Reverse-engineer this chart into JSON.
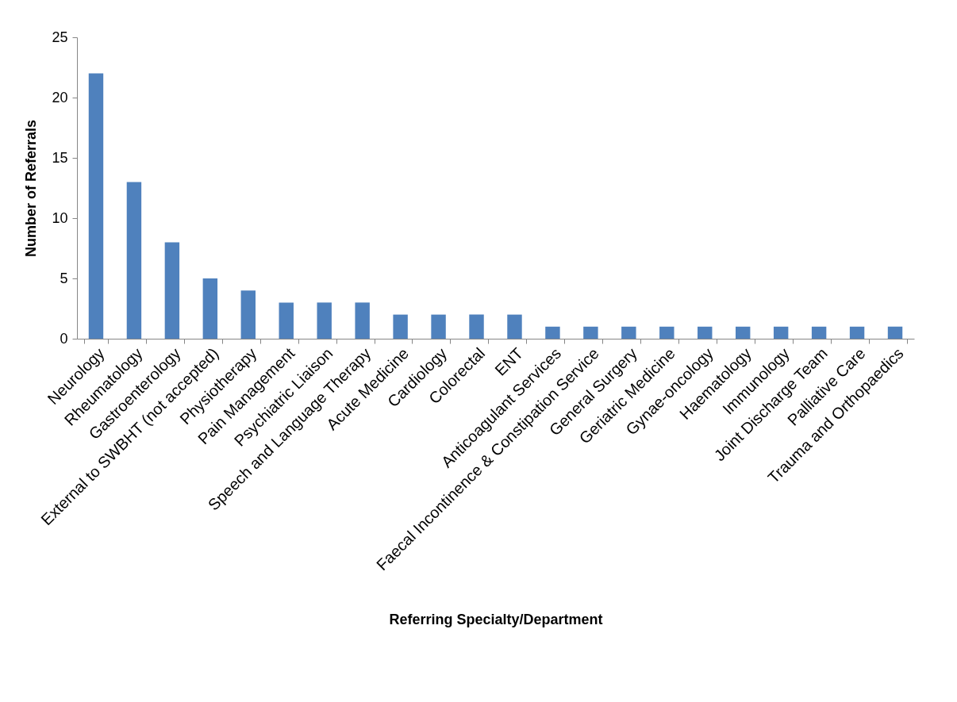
{
  "chart_data": {
    "type": "bar",
    "xlabel": "Referring Specialty/Department",
    "ylabel": "Number of Referrals",
    "categories": [
      "Neurology",
      "Rheumatology",
      "Gastroenterology",
      "External to SWBHT (not accepted)",
      "Physiotherapy",
      "Pain Management",
      "Psychiatric Liaison",
      "Speech and Language Therapy",
      "Acute Medicine",
      "Cardiology",
      "Colorectal",
      "ENT",
      "Anticoagulant Services",
      "Faecal Incontinence & Constipation Service",
      "General Surgery",
      "Geriatric Medicine",
      "Gynae-oncology",
      "Haematology",
      "Immunology",
      "Joint Discharge Team",
      "Palliative Care",
      "Trauma and Orthopaedics"
    ],
    "values": [
      22,
      13,
      8,
      5,
      4,
      3,
      3,
      3,
      2,
      2,
      2,
      2,
      1,
      1,
      1,
      1,
      1,
      1,
      1,
      1,
      1,
      1
    ],
    "color": "#4f81bd",
    "ylim": [
      0,
      25
    ],
    "yticks": [
      0,
      5,
      10,
      15,
      20,
      25
    ],
    "grid": false
  }
}
